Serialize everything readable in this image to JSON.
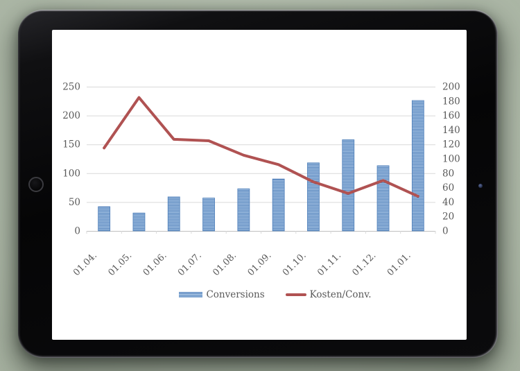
{
  "page": {
    "background_color": "#b3bead"
  },
  "device": {
    "frame_color": "#0a0a0b",
    "screen_color": "#ffffff"
  },
  "chart_data": {
    "type": "combo",
    "categories": [
      "01.04.",
      "01.05.",
      "01.06.",
      "01.07.",
      "01.08.",
      "01.09.",
      "01.10.",
      "01.11.",
      "01.12.",
      "01.01."
    ],
    "series": [
      {
        "name": "Conversions",
        "type": "bar",
        "axis": "left",
        "values": [
          42,
          31,
          59,
          57,
          73,
          90,
          118,
          158,
          113,
          226
        ]
      },
      {
        "name": "Kosten/Conv.",
        "type": "line",
        "axis": "right",
        "values": [
          115,
          185,
          127,
          125,
          105,
          92,
          68,
          52,
          70,
          48
        ]
      }
    ],
    "left_axis": {
      "min": 0,
      "max": 250,
      "step": 50,
      "tick_labels": [
        "0",
        "50",
        "100",
        "150",
        "200",
        "250"
      ]
    },
    "right_axis": {
      "min": 0,
      "max": 200,
      "step": 20,
      "tick_labels": [
        "0",
        "20",
        "40",
        "60",
        "80",
        "100",
        "120",
        "140",
        "160",
        "180",
        "200"
      ]
    },
    "legend": {
      "position": "bottom",
      "entries": [
        "Conversions",
        "Kosten/Conv."
      ]
    },
    "grid": true,
    "title": "",
    "styles": {
      "bar_stripe_dark": "#4e7fba",
      "bar_stripe_light": "#b3cce8",
      "bar_border": "#4e7fba",
      "line_color": "#b05252",
      "axis_text_color": "#595959",
      "gridline_color": "#d9d9d9",
      "axis_line_color": "#bfbfbf"
    }
  }
}
